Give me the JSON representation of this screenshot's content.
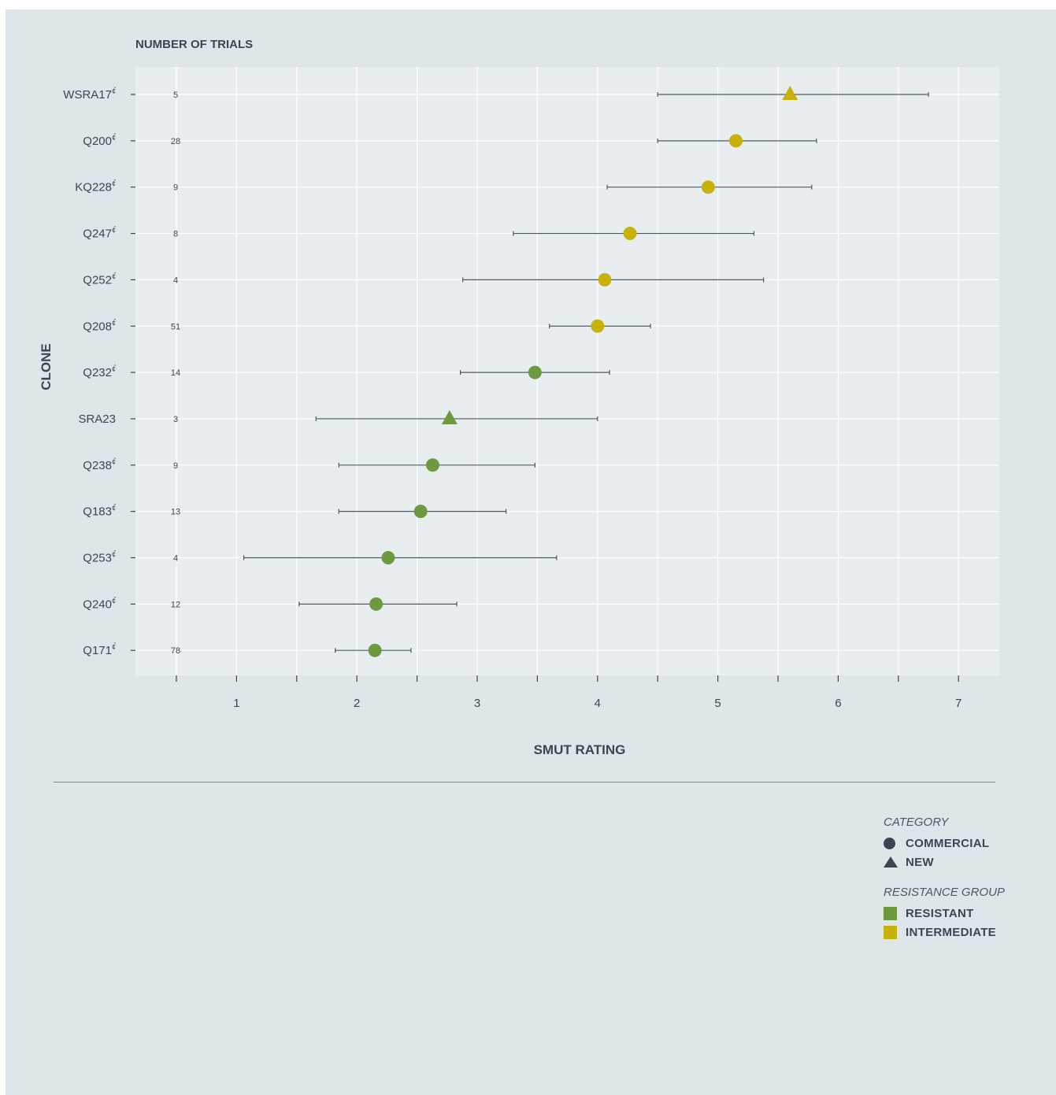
{
  "chart_data": {
    "type": "scatter",
    "title": "NUMBER OF TRIALS",
    "xlabel": "SMUT RATING",
    "ylabel": "CLONE",
    "xlim": [
      0.5,
      7
    ],
    "xticks": [
      1,
      2,
      3,
      4,
      5,
      6,
      7
    ],
    "grid": true,
    "legend_position": "bottom-right",
    "colors": {
      "RESISTANT": "#6e9a3f",
      "INTERMEDIATE": "#c8b10a"
    },
    "clones": [
      {
        "clone": "WSRA17",
        "pbr": true,
        "trials": "5",
        "rating": 5.6,
        "low": 4.5,
        "high": 6.75,
        "category": "NEW",
        "group": "INTERMEDIATE"
      },
      {
        "clone": "Q200",
        "pbr": true,
        "trials": "28",
        "rating": 5.15,
        "low": 4.5,
        "high": 5.82,
        "category": "COMMERCIAL",
        "group": "INTERMEDIATE"
      },
      {
        "clone": "KQ228",
        "pbr": true,
        "trials": "9",
        "rating": 4.92,
        "low": 4.08,
        "high": 5.78,
        "category": "COMMERCIAL",
        "group": "INTERMEDIATE"
      },
      {
        "clone": "Q247",
        "pbr": true,
        "trials": "8",
        "rating": 4.27,
        "low": 3.3,
        "high": 5.3,
        "category": "COMMERCIAL",
        "group": "INTERMEDIATE"
      },
      {
        "clone": "Q252",
        "pbr": true,
        "trials": "4",
        "rating": 4.06,
        "low": 2.88,
        "high": 5.38,
        "category": "COMMERCIAL",
        "group": "INTERMEDIATE"
      },
      {
        "clone": "Q208",
        "pbr": true,
        "trials": "51",
        "rating": 4.0,
        "low": 3.6,
        "high": 4.44,
        "category": "COMMERCIAL",
        "group": "INTERMEDIATE"
      },
      {
        "clone": "Q232",
        "pbr": true,
        "trials": "14",
        "rating": 3.48,
        "low": 2.86,
        "high": 4.1,
        "category": "COMMERCIAL",
        "group": "RESISTANT"
      },
      {
        "clone": "SRA23",
        "pbr": false,
        "trials": "3",
        "rating": 2.77,
        "low": 1.66,
        "high": 4.0,
        "category": "NEW",
        "group": "RESISTANT"
      },
      {
        "clone": "Q238",
        "pbr": true,
        "trials": "9",
        "rating": 2.63,
        "low": 1.85,
        "high": 3.48,
        "category": "COMMERCIAL",
        "group": "RESISTANT"
      },
      {
        "clone": "Q183",
        "pbr": true,
        "trials": "13",
        "rating": 2.53,
        "low": 1.85,
        "high": 3.24,
        "category": "COMMERCIAL",
        "group": "RESISTANT"
      },
      {
        "clone": "Q253",
        "pbr": true,
        "trials": "4",
        "rating": 2.26,
        "low": 1.06,
        "high": 3.66,
        "category": "COMMERCIAL",
        "group": "RESISTANT"
      },
      {
        "clone": "Q240",
        "pbr": true,
        "trials": "12",
        "rating": 2.16,
        "low": 1.52,
        "high": 2.83,
        "category": "COMMERCIAL",
        "group": "RESISTANT"
      },
      {
        "clone": "Q171",
        "pbr": true,
        "trials": "78",
        "rating": 2.15,
        "low": 1.82,
        "high": 2.45,
        "category": "COMMERCIAL",
        "group": "RESISTANT"
      }
    ],
    "pbr_mark": "¢̉"
  },
  "legend": {
    "category_title": "CATEGORY",
    "category_items": [
      {
        "label": "COMMERCIAL",
        "shape": "circle"
      },
      {
        "label": "NEW",
        "shape": "triangle"
      }
    ],
    "group_title": "RESISTANCE GROUP",
    "group_items": [
      {
        "label": "RESISTANT",
        "color": "#6e9a3f"
      },
      {
        "label": "INTERMEDIATE",
        "color": "#c8b10a"
      }
    ]
  }
}
